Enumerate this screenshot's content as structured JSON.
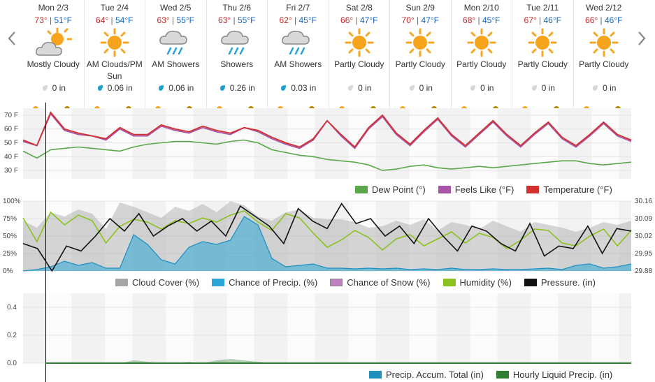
{
  "forecast": {
    "days": [
      {
        "name": "Mon 2/3",
        "hi": "73°",
        "lo": "51°F",
        "icon": "partly-cloudy-icon",
        "condition": "Mostly Cloudy",
        "precip": "0 in",
        "drop": "none"
      },
      {
        "name": "Tue 2/4",
        "hi": "64°",
        "lo": "54°F",
        "icon": "sun-icon",
        "condition": "AM Clouds/PM Sun",
        "precip": "0.06 in",
        "drop": "rain"
      },
      {
        "name": "Wed 2/5",
        "hi": "63°",
        "lo": "55°F",
        "icon": "showers-icon",
        "condition": "AM Showers",
        "precip": "0.06 in",
        "drop": "rain"
      },
      {
        "name": "Thu 2/6",
        "hi": "63°",
        "lo": "55°F",
        "icon": "showers-icon",
        "condition": "Showers",
        "precip": "0.26 in",
        "drop": "rain"
      },
      {
        "name": "Fri 2/7",
        "hi": "62°",
        "lo": "45°F",
        "icon": "showers-icon",
        "condition": "AM Showers",
        "precip": "0.03 in",
        "drop": "rain"
      },
      {
        "name": "Sat 2/8",
        "hi": "66°",
        "lo": "47°F",
        "icon": "sun-icon",
        "condition": "Partly Cloudy",
        "precip": "0 in",
        "drop": "none"
      },
      {
        "name": "Sun 2/9",
        "hi": "70°",
        "lo": "47°F",
        "icon": "sun-icon",
        "condition": "Partly Cloudy",
        "precip": "0 in",
        "drop": "none"
      },
      {
        "name": "Mon 2/10",
        "hi": "68°",
        "lo": "45°F",
        "icon": "sun-icon",
        "condition": "Partly Cloudy",
        "precip": "0 in",
        "drop": "none"
      },
      {
        "name": "Tue 2/11",
        "hi": "67°",
        "lo": "46°F",
        "icon": "sun-icon",
        "condition": "Partly Cloudy",
        "precip": "0 in",
        "drop": "none"
      },
      {
        "name": "Wed 2/12",
        "hi": "66°",
        "lo": "46°F",
        "icon": "sun-icon",
        "condition": "Partly Cloudy",
        "precip": "0 in",
        "drop": "none"
      }
    ]
  },
  "colors": {
    "hi": "#c62828",
    "lo": "#1565c0",
    "dew": "#5aa84a",
    "feels": "#a855a8",
    "temp": "#d32f2f",
    "cloud": "#a6a6a6",
    "precip_chance": "#2aa6d6",
    "snow": "#c080c0",
    "humidity": "#8cc21e",
    "pressure": "#111111",
    "accum": "#1f8fc0",
    "liquid": "#2e7d32"
  },
  "chart_data": [
    {
      "type": "line",
      "ylabel_ticks": [
        "70 F",
        "60 F",
        "50 F",
        "40 F",
        "30 F"
      ],
      "ylim": [
        24,
        75
      ],
      "x_days": 10,
      "series": [
        {
          "name": "Dew Point (°)",
          "values": [
            44,
            39,
            45,
            46,
            47,
            46,
            45,
            44,
            47,
            49,
            50,
            51,
            51,
            50,
            49,
            51,
            52,
            50,
            45,
            43,
            41,
            40,
            38,
            37,
            36,
            34,
            30,
            31,
            33,
            34,
            32,
            31,
            32,
            33,
            32,
            33,
            34,
            35,
            36,
            37,
            37,
            35,
            34,
            35,
            36
          ]
        },
        {
          "name": "Feels Like (°F)",
          "values": [
            51,
            48,
            71,
            59,
            56,
            55,
            52,
            60,
            55,
            55,
            62,
            59,
            57,
            61,
            58,
            56,
            61,
            58,
            53,
            49,
            46,
            52,
            66,
            55,
            46,
            60,
            69,
            56,
            48,
            58,
            67,
            55,
            47,
            56,
            65,
            55,
            47,
            56,
            64,
            53,
            47,
            55,
            64,
            55,
            51
          ]
        },
        {
          "name": "Temperature (°F)",
          "values": [
            52,
            48,
            72,
            60,
            57,
            55,
            53,
            61,
            56,
            56,
            63,
            60,
            58,
            62,
            59,
            57,
            61,
            59,
            54,
            50,
            47,
            53,
            66,
            56,
            47,
            61,
            70,
            57,
            49,
            59,
            68,
            56,
            48,
            57,
            66,
            56,
            48,
            57,
            65,
            54,
            48,
            56,
            65,
            56,
            52
          ]
        }
      ],
      "legend": [
        "Dew Point (°)",
        "Feels Like (°F)",
        "Temperature (°F)"
      ]
    },
    {
      "type": "area",
      "ylabel_ticks_left": [
        "100%",
        "75%",
        "50%",
        "25%",
        "0%"
      ],
      "ylabel_ticks_right": [
        "30.16",
        "30.09",
        "30.02",
        "29.95",
        "29.88"
      ],
      "series": [
        {
          "name": "Cloud Cover (%)",
          "values": [
            72,
            62,
            84,
            78,
            88,
            82,
            60,
            98,
            92,
            84,
            76,
            92,
            86,
            96,
            84,
            100,
            94,
            78,
            72,
            84,
            88,
            76,
            74,
            74,
            70,
            62,
            64,
            72,
            66,
            74,
            58,
            70,
            66,
            60,
            72,
            64,
            56,
            70,
            66,
            62,
            56,
            62,
            70,
            66,
            72
          ]
        },
        {
          "name": "Chance of Precip. (%)",
          "values": [
            0,
            2,
            6,
            14,
            8,
            12,
            4,
            4,
            52,
            38,
            16,
            10,
            34,
            42,
            38,
            44,
            78,
            66,
            18,
            6,
            8,
            10,
            4,
            4,
            3,
            4,
            3,
            4,
            2,
            3,
            2,
            4,
            2,
            2,
            3,
            2,
            2,
            3,
            4,
            2,
            8,
            10,
            4,
            6,
            10
          ]
        },
        {
          "name": "Chance of Snow (%)",
          "values": []
        },
        {
          "name": "Humidity (%)",
          "values": [
            76,
            42,
            84,
            66,
            80,
            72,
            40,
            64,
            74,
            70,
            60,
            72,
            68,
            76,
            70,
            80,
            86,
            70,
            58,
            82,
            76,
            54,
            34,
            44,
            58,
            48,
            30,
            46,
            52,
            36,
            46,
            56,
            40,
            54,
            48,
            32,
            44,
            60,
            58,
            40,
            36,
            50,
            60,
            36,
            58
          ]
        },
        {
          "name": "Pressure. (in)",
          "values": [
            29.99,
            29.97,
            29.88,
            29.98,
            29.96,
            30.02,
            30.09,
            30.04,
            30.11,
            30.02,
            30.06,
            30.09,
            30.04,
            30.08,
            30.02,
            30.14,
            30.1,
            30.06,
            29.99,
            30.13,
            30.08,
            30.05,
            30.15,
            30.07,
            30.09,
            30.02,
            30.06,
            29.99,
            30.09,
            30.02,
            29.96,
            30.06,
            30.04,
            29.99,
            29.96,
            30.07,
            29.94,
            29.98,
            29.97,
            30.06,
            29.95,
            30.05,
            30.04
          ]
        }
      ],
      "legend": [
        "Cloud Cover (%)",
        "Chance of Precip. (%)",
        "Chance of Snow (%)",
        "Humidity (%)",
        "Pressure. (in)"
      ]
    },
    {
      "type": "area",
      "ylabel_ticks": [
        "0.4",
        "0.2",
        "0.0"
      ],
      "ylim": [
        0,
        0.5
      ],
      "series": [
        {
          "name": "Precip. Accum. Total (in)",
          "values": []
        },
        {
          "name": "Hourly Liquid Precip. (in)",
          "values": [
            0,
            0,
            0,
            0,
            0,
            0,
            0,
            0,
            0.02,
            0.01,
            0,
            0,
            0.01,
            0,
            0.02,
            0.03,
            0.02,
            0.01,
            0,
            0,
            0,
            0,
            0,
            0,
            0,
            0,
            0,
            0,
            0,
            0,
            0,
            0,
            0,
            0,
            0,
            0,
            0,
            0,
            0,
            0,
            0,
            0,
            0,
            0,
            0
          ]
        }
      ],
      "legend": [
        "Precip. Accum. Total (in)",
        "Hourly Liquid Precip. (in)"
      ]
    }
  ]
}
